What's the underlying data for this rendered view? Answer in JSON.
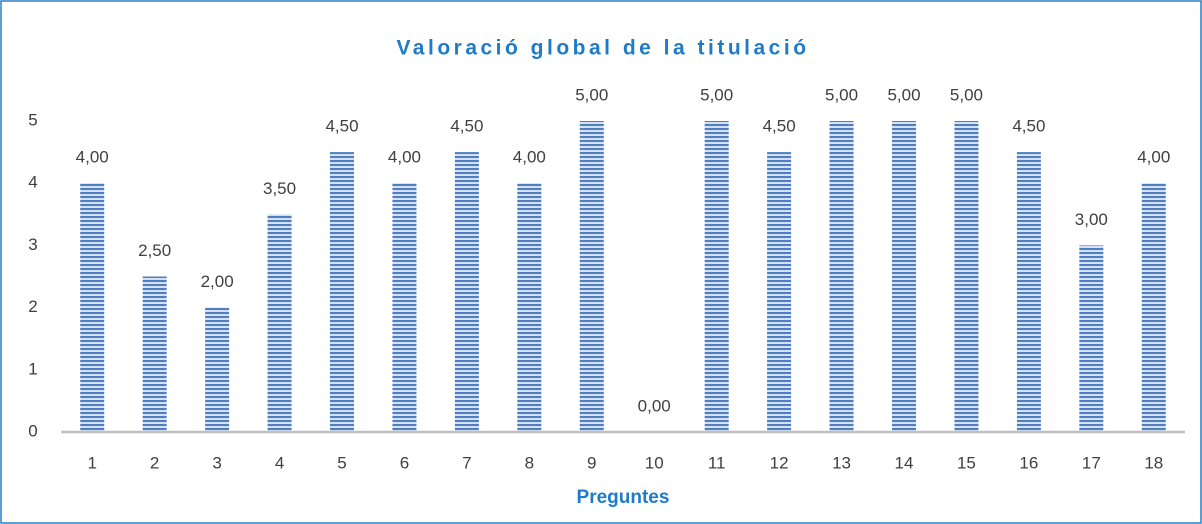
{
  "chart_data": {
    "type": "bar",
    "title": "Valoració global de la titulació",
    "x_label": "Preguntes",
    "categories": [
      "1",
      "2",
      "3",
      "4",
      "5",
      "6",
      "7",
      "8",
      "9",
      "10",
      "11",
      "12",
      "13",
      "14",
      "15",
      "16",
      "17",
      "18"
    ],
    "values": [
      4,
      2.5,
      2,
      3.5,
      4.5,
      4,
      4.5,
      4,
      5,
      0,
      5,
      4.5,
      5,
      5,
      5,
      4.5,
      3,
      4
    ],
    "value_labels": [
      "4,00",
      "2,50",
      "2,00",
      "3,50",
      "4,50",
      "4,00",
      "4,50",
      "4,00",
      "5,00",
      "0,00",
      "5,00",
      "4,50",
      "5,00",
      "5,00",
      "5,00",
      "4,50",
      "3,00",
      "4,00"
    ],
    "color": "#4f7fc0",
    "ylim": [
      0,
      5
    ],
    "yticks": [
      0,
      1,
      2,
      3,
      4,
      5
    ],
    "grid": false
  }
}
